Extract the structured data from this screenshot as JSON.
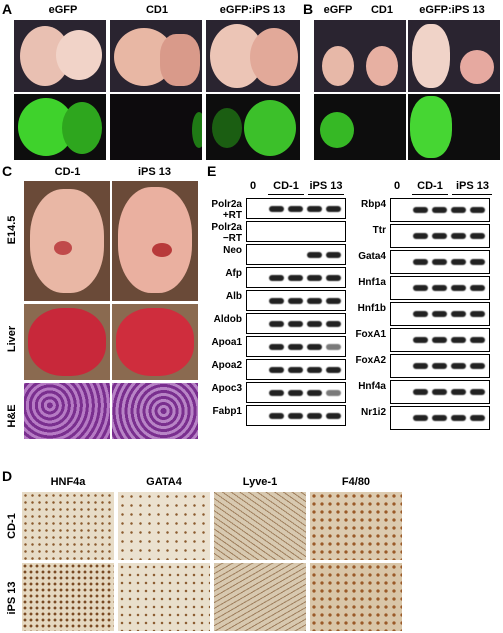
{
  "panels": {
    "A": {
      "letter": "A",
      "cols": [
        "eGFP",
        "CD1",
        "eGFP:iPS 13"
      ]
    },
    "B": {
      "letter": "B",
      "cols": [
        "eGFP",
        "CD1",
        "eGFP:iPS 13"
      ]
    },
    "C": {
      "letter": "C",
      "cols": [
        "CD-1",
        "iPS 13"
      ],
      "rows": [
        "E14.5",
        "Liver",
        "H&E"
      ]
    },
    "D": {
      "letter": "D",
      "cols": [
        "HNF4a",
        "GATA4",
        "Lyve-1",
        "F4/80"
      ],
      "rows": [
        "CD-1",
        "iPS 13"
      ]
    },
    "E": {
      "letter": "E",
      "header": {
        "zero": "0",
        "g1": "CD-1",
        "g2": "iPS 13"
      },
      "left_genes": [
        "Polr2a +RT",
        "Polr2a −RT",
        "Neo",
        "Afp",
        "Alb",
        "Aldob",
        "Apoa1",
        "Apoa2",
        "Apoc3",
        "Fabp1"
      ],
      "right_genes": [
        "Rbp4",
        "Ttr",
        "Gata4",
        "Hnf1a",
        "Hnf1b",
        "FoxA1",
        "FoxA2",
        "Hnf4a",
        "Nr1i2"
      ]
    }
  },
  "colors": {
    "gfp": "#3fd22c",
    "embryo": "#e9b7a5",
    "liver": "#c8283a",
    "he": "#7a2f8f",
    "ihc": "#d8c9b0"
  }
}
